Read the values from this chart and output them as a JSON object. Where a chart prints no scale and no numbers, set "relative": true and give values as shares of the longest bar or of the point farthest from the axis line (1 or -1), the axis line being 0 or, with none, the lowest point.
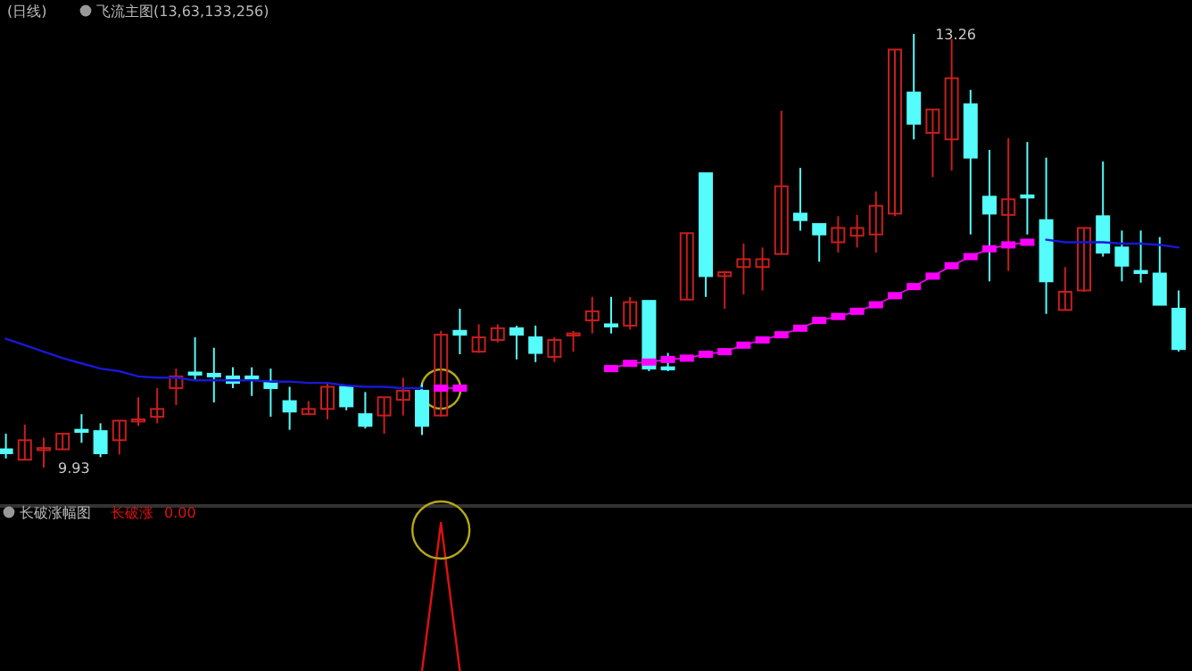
{
  "chart_data": [
    {
      "type": "candlestick",
      "title": "(日线)",
      "subtitle": "飞流主图(13,63,133,256)",
      "categories": [
        null,
        null,
        null,
        null,
        null,
        null,
        null,
        null,
        null,
        null,
        null,
        null,
        null,
        null,
        null,
        null,
        null,
        null,
        null,
        null,
        null,
        null,
        null,
        null,
        null,
        null,
        null,
        null,
        null,
        null,
        null,
        null,
        null,
        null,
        null,
        null,
        null,
        null,
        null,
        null,
        null,
        null,
        null,
        null,
        null,
        null,
        null,
        null,
        null,
        null,
        null,
        null,
        null,
        null,
        null,
        null,
        null,
        null,
        null,
        null,
        null,
        null,
        null
      ],
      "ohlc": [
        [
          10.07,
          10.19,
          10.0,
          10.04
        ],
        [
          9.99,
          10.26,
          9.99,
          10.14
        ],
        [
          10.07,
          10.16,
          9.93,
          10.08
        ],
        [
          10.07,
          10.19,
          10.07,
          10.19
        ],
        [
          10.22,
          10.34,
          10.12,
          10.21
        ],
        [
          10.21,
          10.27,
          10.01,
          10.04
        ],
        [
          10.14,
          10.29,
          10.03,
          10.29
        ],
        [
          10.29,
          10.47,
          10.25,
          10.3
        ],
        [
          10.32,
          10.54,
          10.27,
          10.38
        ],
        [
          10.54,
          10.69,
          10.41,
          10.63
        ],
        [
          10.66,
          10.93,
          10.6,
          10.65
        ],
        [
          10.65,
          10.85,
          10.43,
          10.63
        ],
        [
          10.63,
          10.7,
          10.54,
          10.58
        ],
        [
          10.63,
          10.7,
          10.48,
          10.62
        ],
        [
          10.59,
          10.69,
          10.32,
          10.54
        ],
        [
          10.44,
          10.55,
          10.22,
          10.36
        ],
        [
          10.34,
          10.44,
          10.34,
          10.38
        ],
        [
          10.38,
          10.58,
          10.3,
          10.55
        ],
        [
          10.55,
          10.56,
          10.37,
          10.4
        ],
        [
          10.34,
          10.51,
          10.23,
          10.25
        ],
        [
          10.33,
          10.47,
          10.19,
          10.47
        ],
        [
          10.45,
          10.62,
          10.33,
          10.52
        ],
        [
          10.52,
          10.58,
          10.18,
          10.25
        ],
        [
          10.33,
          10.98,
          10.32,
          10.95
        ],
        [
          10.98,
          11.15,
          10.8,
          10.95
        ],
        [
          10.82,
          11.03,
          10.81,
          10.93
        ],
        [
          10.91,
          11.03,
          10.89,
          11.0
        ],
        [
          11.0,
          11.02,
          10.76,
          10.95
        ],
        [
          10.93,
          11.02,
          10.74,
          10.81
        ],
        [
          10.78,
          10.93,
          10.74,
          10.91
        ],
        [
          10.95,
          10.98,
          10.82,
          10.96
        ],
        [
          11.06,
          11.24,
          10.96,
          11.13
        ],
        [
          11.03,
          11.24,
          10.96,
          11.02
        ],
        [
          11.02,
          11.24,
          10.99,
          11.2
        ],
        [
          11.21,
          11.21,
          10.67,
          10.69
        ],
        [
          10.7,
          10.81,
          10.67,
          10.69
        ],
        [
          11.22,
          11.73,
          11.22,
          11.73
        ],
        [
          12.19,
          12.19,
          11.24,
          11.4
        ],
        [
          11.4,
          11.44,
          11.15,
          11.43
        ],
        [
          11.47,
          11.65,
          11.26,
          11.53
        ],
        [
          11.47,
          11.62,
          11.29,
          11.53
        ],
        [
          11.57,
          12.67,
          11.57,
          12.09
        ],
        [
          11.88,
          12.23,
          11.75,
          11.83
        ],
        [
          11.8,
          11.8,
          11.51,
          11.72
        ],
        [
          11.66,
          11.86,
          11.58,
          11.77
        ],
        [
          11.71,
          11.87,
          11.62,
          11.77
        ],
        [
          11.72,
          12.05,
          11.58,
          11.94
        ],
        [
          11.88,
          13.14,
          11.86,
          13.14
        ],
        [
          12.81,
          13.26,
          12.45,
          12.57
        ],
        [
          12.5,
          12.68,
          12.16,
          12.68
        ],
        [
          12.45,
          13.22,
          12.21,
          12.92
        ],
        [
          12.72,
          12.83,
          11.72,
          12.31
        ],
        [
          12.01,
          12.37,
          11.36,
          11.88
        ],
        [
          11.87,
          12.46,
          11.44,
          11.99
        ],
        [
          12.02,
          12.43,
          11.72,
          12.01
        ],
        [
          11.83,
          12.31,
          11.11,
          11.36
        ],
        [
          11.14,
          11.47,
          11.14,
          11.28
        ],
        [
          11.29,
          11.77,
          11.28,
          11.77
        ],
        [
          11.86,
          12.28,
          11.55,
          11.58
        ],
        [
          11.62,
          11.75,
          11.36,
          11.48
        ],
        [
          11.44,
          11.75,
          11.35,
          11.43
        ],
        [
          11.42,
          11.7,
          11.18,
          11.18
        ],
        [
          11.15,
          11.29,
          10.82,
          10.84
        ]
      ],
      "colors": [
        "#54fcfc",
        "#c81e1e",
        "#c81e1e",
        "#c81e1e",
        "#54fcfc",
        "#54fcfc",
        "#c81e1e",
        "#c81e1e",
        "#c81e1e",
        "#c81e1e",
        "#54fcfc",
        "#54fcfc",
        "#54fcfc",
        "#54fcfc",
        "#54fcfc",
        "#54fcfc",
        "#c81e1e",
        "#c81e1e",
        "#54fcfc",
        "#54fcfc",
        "#c81e1e",
        "#c81e1e",
        "#54fcfc",
        "#c81e1e",
        "#54fcfc",
        "#c81e1e",
        "#c81e1e",
        "#54fcfc",
        "#54fcfc",
        "#c81e1e",
        "#c81e1e",
        "#c81e1e",
        "#54fcfc",
        "#c81e1e",
        "#54fcfc",
        "#54fcfc",
        "#c81e1e",
        "#54fcfc",
        "#c81e1e",
        "#c81e1e",
        "#c81e1e",
        "#c81e1e",
        "#54fcfc",
        "#54fcfc",
        "#c81e1e",
        "#c81e1e",
        "#c81e1e",
        "#c81e1e",
        "#54fcfc",
        "#c81e1e",
        "#c81e1e",
        "#54fcfc",
        "#54fcfc",
        "#c81e1e",
        "#54fcfc",
        "#54fcfc",
        "#c81e1e",
        "#c81e1e",
        "#54fcfc",
        "#54fcfc",
        "#54fcfc",
        "#54fcfc",
        "#54fcfc"
      ],
      "series": [
        {
          "type": "line",
          "color": "#1818d8",
          "values": [
            10.92,
            10.87,
            10.82,
            10.77,
            10.73,
            10.69,
            10.67,
            10.63,
            10.62,
            10.62,
            10.6,
            10.6,
            10.6,
            10.6,
            10.59,
            10.59,
            10.58,
            10.58,
            10.56,
            10.55,
            10.55,
            10.54,
            10.54,
            null,
            null,
            null,
            null,
            null,
            null,
            null,
            null,
            null,
            null,
            null,
            null,
            null,
            null,
            null,
            null,
            null,
            null,
            null,
            null,
            null,
            null,
            null,
            null,
            null,
            null,
            null,
            null,
            null,
            null,
            null,
            null,
            11.68,
            11.66,
            11.66,
            11.66,
            11.65,
            11.65,
            11.64,
            11.62
          ]
        },
        {
          "type": "line",
          "color": "#ff00ff",
          "marker": "square",
          "values": [
            null,
            null,
            null,
            null,
            null,
            null,
            null,
            null,
            null,
            null,
            null,
            null,
            null,
            null,
            null,
            null,
            null,
            null,
            null,
            null,
            null,
            null,
            null,
            10.54,
            10.54,
            null,
            null,
            null,
            null,
            null,
            null,
            null,
            10.69,
            10.73,
            10.74,
            10.76,
            10.77,
            10.8,
            10.82,
            10.87,
            10.91,
            10.95,
            11.0,
            11.06,
            11.09,
            11.13,
            11.18,
            11.25,
            11.32,
            11.4,
            11.48,
            11.55,
            11.61,
            11.64,
            11.66,
            null,
            null,
            null,
            null,
            null,
            null,
            null,
            null
          ]
        }
      ],
      "annotations": [
        {
          "text": "13.26",
          "y": 13.26
        },
        "9.93"
      ]
    },
    {
      "type": "line",
      "relative": true,
      "title": "长破涨幅图",
      "categories": [
        null,
        null,
        null,
        null,
        null,
        null,
        null,
        null,
        null,
        null,
        null,
        null,
        null,
        null,
        null,
        null,
        null,
        null,
        null,
        null,
        null,
        null,
        null,
        null,
        null,
        null,
        null,
        null,
        null,
        null,
        null,
        null,
        null,
        null,
        null,
        null,
        null,
        null,
        null,
        null,
        null,
        null,
        null,
        null,
        null,
        null,
        null,
        null,
        null,
        null,
        null,
        null,
        null,
        null,
        null,
        null,
        null,
        null,
        null,
        null,
        null,
        null,
        null
      ],
      "series": [
        {
          "name": "长破涨",
          "color": "#e01010",
          "values": [
            null,
            null,
            null,
            null,
            null,
            null,
            null,
            null,
            null,
            null,
            null,
            null,
            null,
            null,
            null,
            null,
            null,
            null,
            null,
            null,
            null,
            null,
            0,
            1,
            0,
            null,
            null,
            null,
            null,
            null,
            null,
            null,
            null,
            null,
            null,
            null,
            null,
            null,
            null,
            null,
            null,
            null,
            null,
            null,
            null,
            null,
            null,
            null,
            null,
            null,
            null,
            null,
            null,
            null,
            null,
            null,
            null,
            null,
            null,
            null,
            null,
            null,
            null
          ]
        }
      ],
      "annotations": [
        "0.00"
      ]
    }
  ]
}
